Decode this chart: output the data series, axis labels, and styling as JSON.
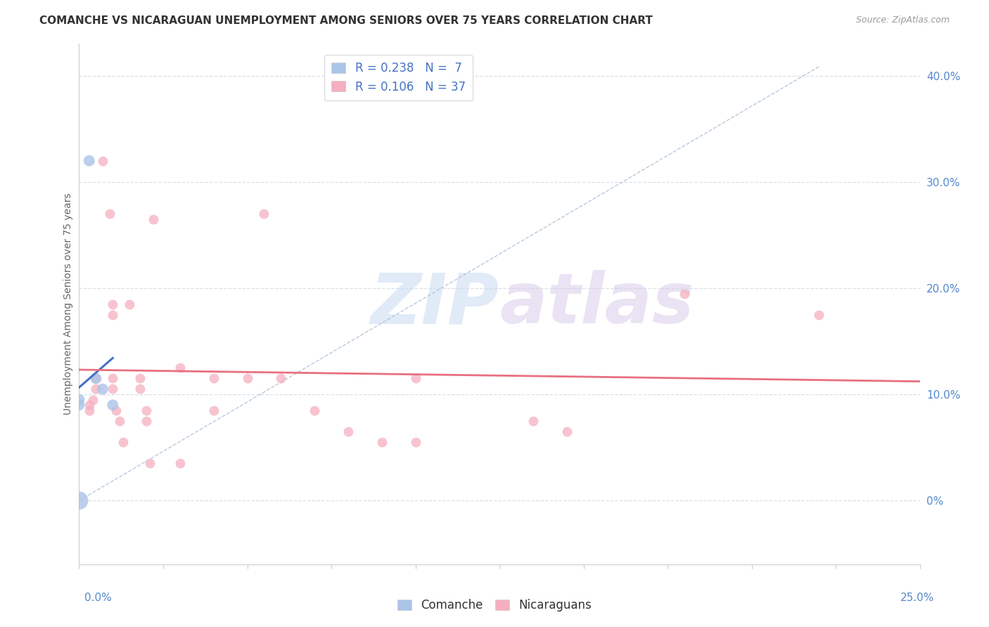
{
  "title": "COMANCHE VS NICARAGUAN UNEMPLOYMENT AMONG SENIORS OVER 75 YEARS CORRELATION CHART",
  "source": "Source: ZipAtlas.com",
  "ylabel": "Unemployment Among Seniors over 75 years",
  "ylabel_right_vals": [
    0.0,
    0.1,
    0.2,
    0.3,
    0.4
  ],
  "ylabel_right_labels": [
    "0%",
    "10.0%",
    "20.0%",
    "30.0%",
    "40.0%"
  ],
  "xmin": 0.0,
  "xmax": 0.25,
  "ymin": -0.06,
  "ymax": 0.43,
  "watermark_zip": "ZIP",
  "watermark_atlas": "atlas",
  "legend_comanche_label": "R = 0.238   N =  7",
  "legend_nicaraguan_label": "R = 0.106   N = 37",
  "comanche_color": "#aac4e8",
  "nicaraguan_color": "#f5afc0",
  "comanche_line_color": "#4472c4",
  "nicaraguan_line_color": "#e87080",
  "dashed_line_color": "#b0c4d8",
  "comanche_points": [
    [
      0.0,
      0.0
    ],
    [
      0.0,
      0.09
    ],
    [
      0.0,
      0.095
    ],
    [
      0.003,
      0.32
    ],
    [
      0.005,
      0.115
    ],
    [
      0.007,
      0.105
    ],
    [
      0.01,
      0.09
    ]
  ],
  "nicaraguan_points": [
    [
      0.003,
      0.09
    ],
    [
      0.003,
      0.085
    ],
    [
      0.004,
      0.095
    ],
    [
      0.005,
      0.105
    ],
    [
      0.005,
      0.115
    ],
    [
      0.007,
      0.32
    ],
    [
      0.009,
      0.27
    ],
    [
      0.01,
      0.185
    ],
    [
      0.01,
      0.175
    ],
    [
      0.01,
      0.115
    ],
    [
      0.01,
      0.105
    ],
    [
      0.011,
      0.085
    ],
    [
      0.012,
      0.075
    ],
    [
      0.013,
      0.055
    ],
    [
      0.015,
      0.185
    ],
    [
      0.018,
      0.115
    ],
    [
      0.018,
      0.105
    ],
    [
      0.02,
      0.085
    ],
    [
      0.02,
      0.075
    ],
    [
      0.021,
      0.035
    ],
    [
      0.022,
      0.265
    ],
    [
      0.03,
      0.125
    ],
    [
      0.03,
      0.035
    ],
    [
      0.04,
      0.115
    ],
    [
      0.04,
      0.085
    ],
    [
      0.05,
      0.115
    ],
    [
      0.055,
      0.27
    ],
    [
      0.06,
      0.115
    ],
    [
      0.07,
      0.085
    ],
    [
      0.08,
      0.065
    ],
    [
      0.09,
      0.055
    ],
    [
      0.1,
      0.115
    ],
    [
      0.1,
      0.055
    ],
    [
      0.135,
      0.075
    ],
    [
      0.145,
      0.065
    ],
    [
      0.18,
      0.195
    ],
    [
      0.22,
      0.175
    ]
  ],
  "comanche_marker_size": 130,
  "nicaraguan_marker_size": 100,
  "comanche_large_marker_size": 350,
  "grid_color": "#d8e0e8",
  "grid_style": "--",
  "spine_color": "#cccccc",
  "title_fontsize": 11,
  "source_fontsize": 9,
  "tick_label_fontsize": 11,
  "right_tick_color": "#5588cc",
  "bottom_label_color": "#5588cc"
}
